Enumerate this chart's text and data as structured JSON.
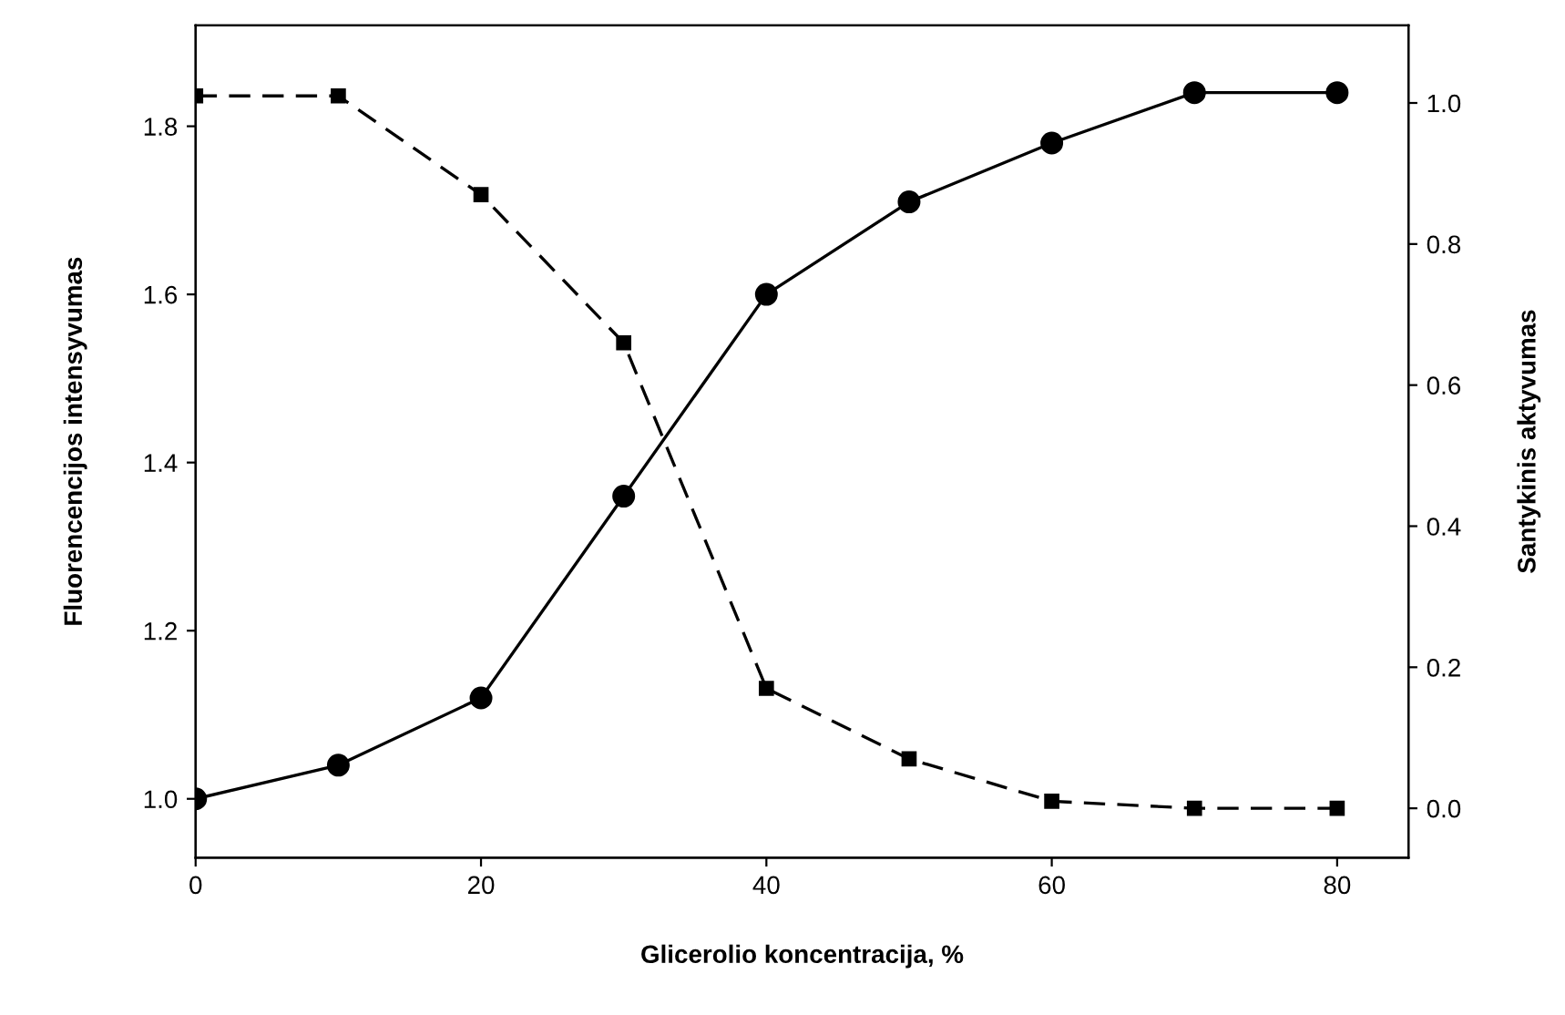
{
  "chart_data": {
    "type": "line",
    "xlabel": "Glicerolio koncentracija, %",
    "ylabel": "Fluorencencijos intensyvumas",
    "y2label": "Santykinis aktyvumas",
    "x": [
      0,
      10,
      20,
      30,
      40,
      50,
      60,
      70,
      80
    ],
    "series": [
      {
        "color": "#000000",
        "marker": "circle",
        "line_style": "solid",
        "values": [
          1.0,
          1.04,
          1.12,
          1.36,
          1.6,
          1.71,
          1.78,
          1.84,
          1.84
        ]
      },
      {
        "color": "#000000",
        "marker": "square",
        "line_style": "dashed",
        "axis": "y2",
        "values": [
          1.01,
          1.01,
          0.87,
          0.66,
          0.17,
          0.07,
          0.01,
          0.0,
          0.0
        ]
      }
    ],
    "xlim": [
      0,
      85
    ],
    "xticks": [
      0,
      20,
      40,
      60,
      80
    ],
    "ylim": [
      0.93,
      1.92
    ],
    "yticks": [
      {
        "value": 1,
        "label": "1.0"
      },
      1.2,
      1.4,
      1.6,
      1.8
    ],
    "y2lim": [
      -0.07,
      1.11
    ],
    "y2ticks": [
      {
        "value": 0,
        "label": "0.0"
      },
      0.2,
      0.4,
      0.6,
      0.8,
      {
        "value": 1,
        "label": "1.0"
      }
    ],
    "grid": false
  }
}
